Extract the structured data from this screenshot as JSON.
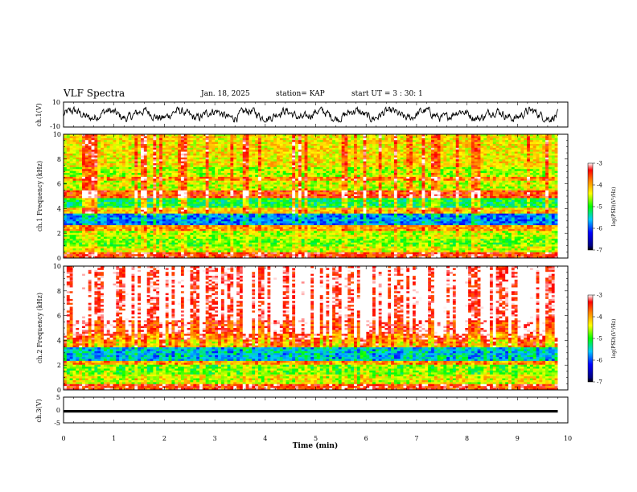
{
  "header": {
    "title": "VLF Spectra",
    "date": "Jan. 18, 2025",
    "station": "station= KAP",
    "start": "start  UT  =  3 : 30: 1"
  },
  "chart_data": [
    {
      "type": "line",
      "panel": "ch1-waveform",
      "ylabel": "ch.1(V)",
      "ylim": [
        -10,
        10
      ],
      "yticks": [
        "10",
        "-10"
      ],
      "xlim": [
        0,
        10
      ],
      "series": [
        {
          "trace_range_v": [
            -6,
            6
          ],
          "mean_v": 0
        }
      ]
    },
    {
      "type": "heatmap",
      "panel": "ch1-spectrogram",
      "ylabel": "ch.1  Frequency  (kHz)",
      "ylim": [
        0,
        10
      ],
      "yticks": [
        "0",
        "2",
        "4",
        "6",
        "8",
        "10"
      ],
      "xlim": [
        0,
        10
      ],
      "colorbar": {
        "label": "log(PSD)(V²/Hz)",
        "range": [
          -7,
          -3
        ],
        "ticks": [
          "-3",
          "-4",
          "-5",
          "-6",
          "-7"
        ]
      },
      "bands_khz": [
        {
          "from": 0,
          "to": 0.5,
          "level": -3.5
        },
        {
          "from": 0.5,
          "to": 1.0,
          "level": -4.5
        },
        {
          "from": 1.0,
          "to": 1.6,
          "level": -4.8
        },
        {
          "from": 1.6,
          "to": 2.2,
          "level": -4.6
        },
        {
          "from": 2.2,
          "to": 2.6,
          "level": -4.0
        },
        {
          "from": 2.6,
          "to": 3.6,
          "level": -5.8
        },
        {
          "from": 3.6,
          "to": 4.0,
          "level": -4.2
        },
        {
          "from": 4.0,
          "to": 4.8,
          "level": -5.1
        },
        {
          "from": 4.8,
          "to": 5.4,
          "level": -3.6
        },
        {
          "from": 5.4,
          "to": 6.2,
          "level": -4.5
        },
        {
          "from": 6.2,
          "to": 6.6,
          "level": -3.9
        },
        {
          "from": 6.6,
          "to": 7.4,
          "level": -4.6
        },
        {
          "from": 7.4,
          "to": 10.0,
          "level": -4.3
        }
      ]
    },
    {
      "type": "heatmap",
      "panel": "ch2-spectrogram",
      "ylabel": "ch.2  Frequency  (kHz)",
      "ylim": [
        0,
        10
      ],
      "yticks": [
        "0",
        "2",
        "4",
        "6",
        "8",
        "10"
      ],
      "xlim": [
        0,
        10
      ],
      "colorbar": {
        "label": "log(PSD)(V²/Hz)",
        "range": [
          -7,
          -3
        ],
        "ticks": [
          "-3",
          "-4",
          "-5",
          "-6",
          "-7"
        ]
      },
      "bands_khz": [
        {
          "from": 0,
          "to": 0.5,
          "level": -3.6
        },
        {
          "from": 0.5,
          "to": 1.2,
          "level": -4.6
        },
        {
          "from": 1.2,
          "to": 2.0,
          "level": -4.9
        },
        {
          "from": 2.0,
          "to": 2.4,
          "level": -4.1
        },
        {
          "from": 2.4,
          "to": 3.4,
          "level": -5.7
        },
        {
          "from": 3.4,
          "to": 4.0,
          "level": -4.4
        },
        {
          "from": 4.0,
          "to": 4.6,
          "level": -4.0
        },
        {
          "from": 4.6,
          "to": 5.6,
          "level": -3.6
        },
        {
          "from": 5.6,
          "to": 10.0,
          "level": -3.2
        }
      ]
    },
    {
      "type": "line",
      "panel": "ch3-waveform",
      "ylabel": "ch.3(V)",
      "ylim": [
        -5,
        5
      ],
      "yticks": [
        "5",
        "0",
        "-5"
      ],
      "xlim": [
        0,
        10
      ],
      "xlabel": "Time  (min)",
      "xticks": [
        "0",
        "1",
        "2",
        "3",
        "4",
        "5",
        "6",
        "7",
        "8",
        "9",
        "10"
      ],
      "series": [
        {
          "trace_range_v": [
            -1,
            0
          ],
          "mean_v": -0.5
        }
      ]
    }
  ]
}
